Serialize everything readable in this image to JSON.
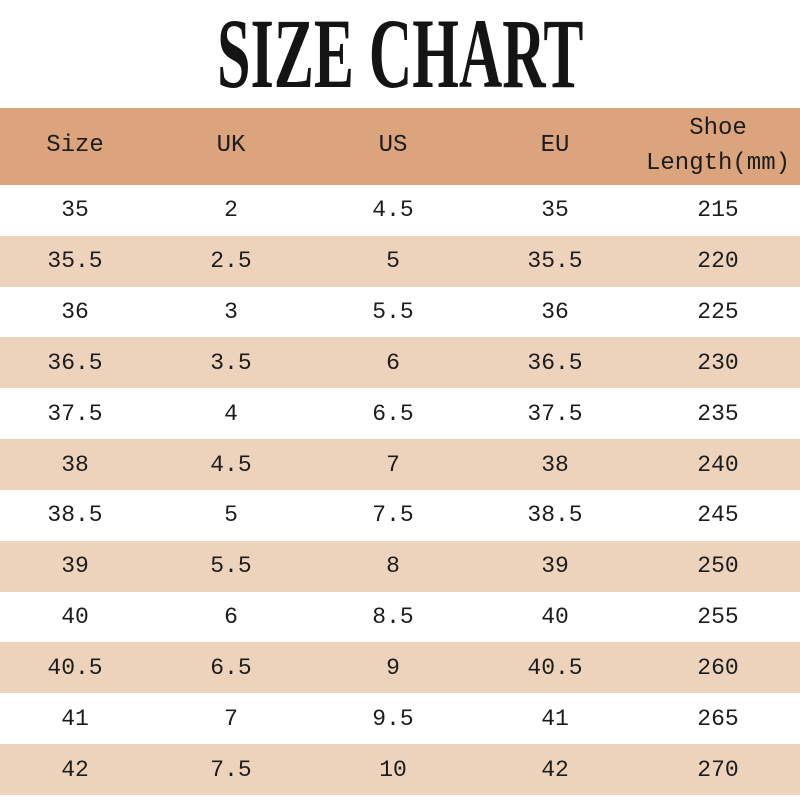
{
  "page": {
    "title": "SIZE CHART"
  },
  "colors": {
    "header_bg": "#dba47d",
    "stripe_bg": "#eed3bc",
    "row_bg": "#ffffff",
    "text_color": "#1c1c1c",
    "title_color": "#141414"
  },
  "chart_data": {
    "type": "table",
    "title": "SIZE CHART",
    "columns": [
      "Size",
      "UK",
      "US",
      "EU",
      "Shoe Length(mm)"
    ],
    "rows": [
      [
        "35",
        "2",
        "4.5",
        "35",
        "215"
      ],
      [
        "35.5",
        "2.5",
        "5",
        "35.5",
        "220"
      ],
      [
        "36",
        "3",
        "5.5",
        "36",
        "225"
      ],
      [
        "36.5",
        "3.5",
        "6",
        "36.5",
        "230"
      ],
      [
        "37.5",
        "4",
        "6.5",
        "37.5",
        "235"
      ],
      [
        "38",
        "4.5",
        "7",
        "38",
        "240"
      ],
      [
        "38.5",
        "5",
        "7.5",
        "38.5",
        "245"
      ],
      [
        "39",
        "5.5",
        "8",
        "39",
        "250"
      ],
      [
        "40",
        "6",
        "8.5",
        "40",
        "255"
      ],
      [
        "40.5",
        "6.5",
        "9",
        "40.5",
        "260"
      ],
      [
        "41",
        "7",
        "9.5",
        "41",
        "265"
      ],
      [
        "42",
        "7.5",
        "10",
        "42",
        "270"
      ]
    ],
    "layout_hints": {
      "stripe_pattern": "odd rows white, even rows tan",
      "header_row_bg": "tan (darker)",
      "alignment": "all cells centered"
    }
  }
}
